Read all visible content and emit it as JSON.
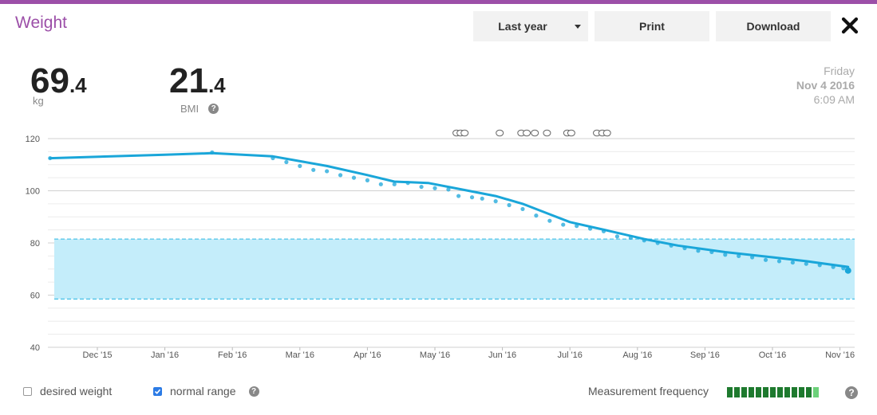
{
  "header": {
    "title": "Weight",
    "range_label": "Last year",
    "print_label": "Print",
    "download_label": "Download"
  },
  "summary": {
    "weight_int": "69",
    "weight_dec": ".4",
    "weight_unit": "kg",
    "bmi_int": "21",
    "bmi_dec": ".4",
    "bmi_label": "BMI"
  },
  "date": {
    "weekday": "Friday",
    "day": "Nov 4 2016",
    "time": "6:09 AM"
  },
  "footer": {
    "desired_label": "desired weight",
    "desired_checked": false,
    "normal_label": "normal range",
    "normal_checked": true,
    "frequency_label": "Measurement frequency",
    "frequency_bars": 13
  },
  "colors": {
    "accent": "#9c4fa8",
    "series": "#1aa6d9",
    "range_fill": "#c4edfa",
    "range_line": "#4fc3e8",
    "freq_dark": "#1e7a2e",
    "freq_light": "#6cd17a"
  },
  "chart_data": {
    "type": "line",
    "x_labels": [
      "Dec '15",
      "Jan '16",
      "Feb '16",
      "Mar '16",
      "Apr '16",
      "May '16",
      "Jun '16",
      "Jul '16",
      "Aug '16",
      "Sep '16",
      "Oct '16",
      "Nov '16"
    ],
    "y_ticks": [
      40,
      60,
      80,
      100,
      120
    ],
    "ylim": [
      40,
      120
    ],
    "normal_range": [
      58.5,
      81.5
    ],
    "trend": [
      {
        "t": -0.7,
        "v": 112.5
      },
      {
        "t": 1.0,
        "v": 113.8
      },
      {
        "t": 1.7,
        "v": 114.4
      },
      {
        "t": 2.6,
        "v": 113.2
      },
      {
        "t": 3.4,
        "v": 109.5
      },
      {
        "t": 4.0,
        "v": 106.0
      },
      {
        "t": 4.4,
        "v": 103.5
      },
      {
        "t": 4.9,
        "v": 103.0
      },
      {
        "t": 5.4,
        "v": 100.5
      },
      {
        "t": 5.9,
        "v": 98.0
      },
      {
        "t": 6.3,
        "v": 95.0
      },
      {
        "t": 6.7,
        "v": 91.0
      },
      {
        "t": 7.0,
        "v": 88.0
      },
      {
        "t": 7.6,
        "v": 84.5
      },
      {
        "t": 8.1,
        "v": 81.5
      },
      {
        "t": 8.6,
        "v": 79.0
      },
      {
        "t": 9.3,
        "v": 76.5
      },
      {
        "t": 10.0,
        "v": 74.5
      },
      {
        "t": 10.5,
        "v": 73.0
      },
      {
        "t": 11.12,
        "v": 70.8
      }
    ],
    "measurements": [
      {
        "t": -0.7,
        "v": 112.5
      },
      {
        "t": 1.7,
        "v": 114.7
      },
      {
        "t": 2.6,
        "v": 112.5
      },
      {
        "t": 2.8,
        "v": 111.0
      },
      {
        "t": 3.0,
        "v": 109.5
      },
      {
        "t": 3.2,
        "v": 108.0
      },
      {
        "t": 3.4,
        "v": 107.5
      },
      {
        "t": 3.6,
        "v": 106.0
      },
      {
        "t": 3.8,
        "v": 105.0
      },
      {
        "t": 4.0,
        "v": 104.0
      },
      {
        "t": 4.2,
        "v": 102.5
      },
      {
        "t": 4.4,
        "v": 102.5
      },
      {
        "t": 4.6,
        "v": 103.0
      },
      {
        "t": 4.8,
        "v": 101.5
      },
      {
        "t": 5.0,
        "v": 101.0
      },
      {
        "t": 5.2,
        "v": 100.5
      },
      {
        "t": 5.35,
        "v": 98.0
      },
      {
        "t": 5.55,
        "v": 97.5
      },
      {
        "t": 5.7,
        "v": 97.0
      },
      {
        "t": 5.9,
        "v": 96.0
      },
      {
        "t": 6.1,
        "v": 94.5
      },
      {
        "t": 6.3,
        "v": 93.0
      },
      {
        "t": 6.5,
        "v": 90.5
      },
      {
        "t": 6.7,
        "v": 88.5
      },
      {
        "t": 6.9,
        "v": 87.0
      },
      {
        "t": 7.1,
        "v": 86.5
      },
      {
        "t": 7.3,
        "v": 85.5
      },
      {
        "t": 7.5,
        "v": 84.5
      },
      {
        "t": 7.7,
        "v": 82.5
      },
      {
        "t": 7.9,
        "v": 82.0
      },
      {
        "t": 8.1,
        "v": 81.0
      },
      {
        "t": 8.3,
        "v": 80.0
      },
      {
        "t": 8.5,
        "v": 79.0
      },
      {
        "t": 8.7,
        "v": 78.0
      },
      {
        "t": 8.9,
        "v": 77.0
      },
      {
        "t": 9.1,
        "v": 76.5
      },
      {
        "t": 9.3,
        "v": 75.5
      },
      {
        "t": 9.5,
        "v": 75.0
      },
      {
        "t": 9.7,
        "v": 74.5
      },
      {
        "t": 9.9,
        "v": 73.5
      },
      {
        "t": 10.1,
        "v": 73.0
      },
      {
        "t": 10.3,
        "v": 72.5
      },
      {
        "t": 10.5,
        "v": 72.0
      },
      {
        "t": 10.7,
        "v": 71.5
      },
      {
        "t": 10.9,
        "v": 70.8
      },
      {
        "t": 11.05,
        "v": 70.3
      },
      {
        "t": 11.12,
        "v": 69.4
      }
    ],
    "notes_t": [
      5.32,
      5.38,
      5.44,
      5.96,
      6.28,
      6.36,
      6.48,
      6.66,
      6.96,
      7.02,
      7.4,
      7.48,
      7.55
    ]
  }
}
